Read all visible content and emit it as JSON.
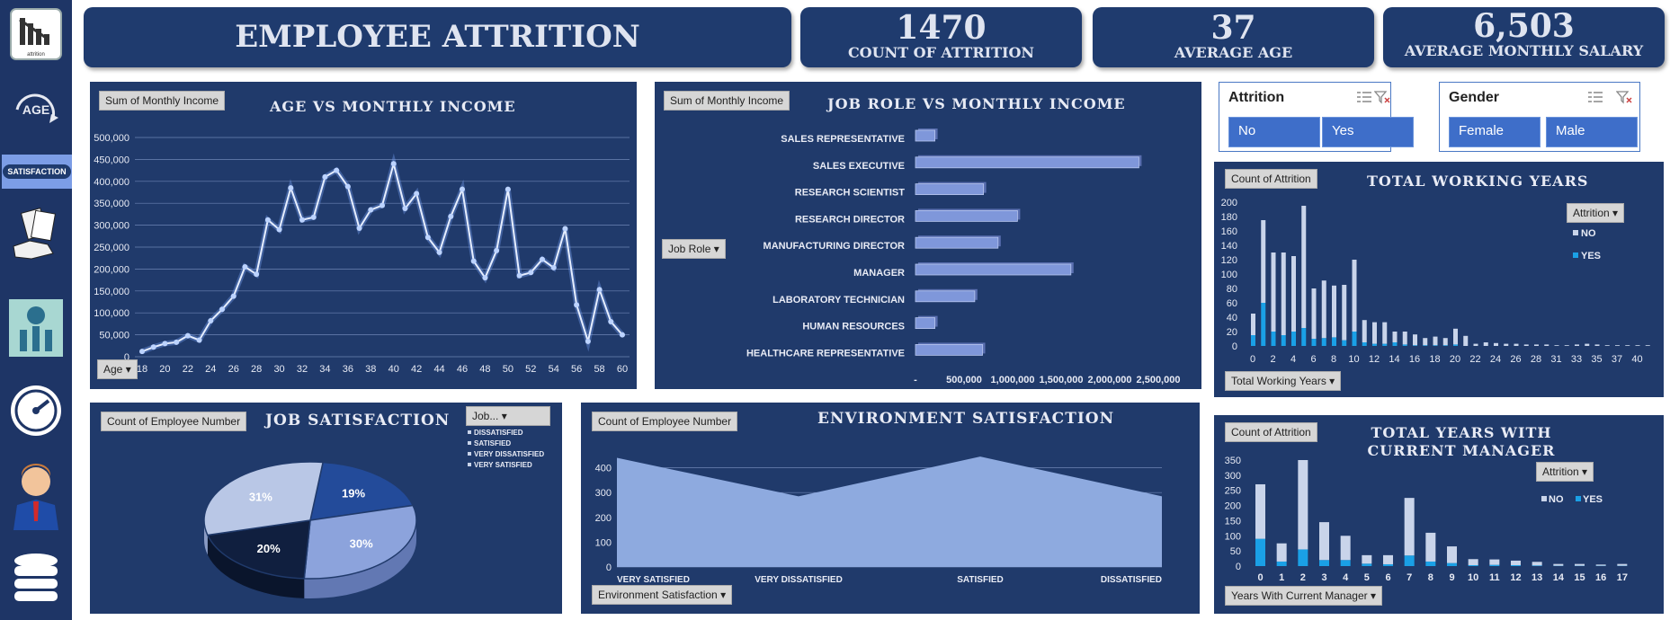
{
  "kpis": {
    "title": "EMPLOYEE ATTRITION",
    "attrition_value": "1470",
    "attrition_label": "COUNT OF ATTRITION",
    "age_value": "37",
    "age_label": "AVERAGE AGE",
    "salary_value": "6,503",
    "salary_label": "AVERAGE MONTHLY SALARY"
  },
  "sidebar": {
    "logo_caption": "attrition",
    "age_label": "AGE",
    "satisfaction_label": "SATISFACTION"
  },
  "slicers": {
    "attrition": {
      "title": "Attrition",
      "options": [
        "No",
        "Yes"
      ]
    },
    "gender": {
      "title": "Gender",
      "options": [
        "Female",
        "Male"
      ]
    }
  },
  "age_chart": {
    "title": "AGE VS MONTHLY INCOME",
    "field_chip": "Sum of Monthly  Income",
    "axis_chip": "Age"
  },
  "job_chart": {
    "title": "JOB ROLE VS MONTHLY INCOME",
    "field_chip": "Sum of Monthly  Income",
    "axis_chip": "Job Role"
  },
  "tw_chart": {
    "title": "TOTAL WORKING YEARS",
    "field_chip": "Count of Attrition",
    "legend_chip": "Attrition",
    "axis_chip": "Total Working Years"
  },
  "js_chart": {
    "title": "JOB SATISFACTION",
    "field_chip": "Count of Employee  Number",
    "legend_chip": "Job..."
  },
  "env_chart": {
    "title": "ENVIRONMENT SATISFACTION",
    "field_chip": "Count of Employee  Number",
    "axis_chip": "Environment  Satisfaction"
  },
  "mgr_chart": {
    "title": "TOTAL YEARS WITH CURRENT MANAGER",
    "field_chip": "Count of Attrition",
    "legend_chip": "Attrition",
    "axis_chip": "Years With Current Manager"
  },
  "colors": {
    "panel": "#203a6b",
    "line": "#7ea8ff",
    "bar": "#7f97da",
    "no_series": "#c9d4ea",
    "yes_series": "#1aa0e6",
    "area": "#8eaadf"
  },
  "chart_data": [
    {
      "id": "age",
      "type": "line",
      "xlabel": "",
      "ylabel": "",
      "x": [
        18,
        19,
        20,
        21,
        22,
        23,
        24,
        25,
        26,
        27,
        28,
        29,
        30,
        31,
        32,
        33,
        34,
        35,
        36,
        37,
        38,
        39,
        40,
        41,
        42,
        43,
        44,
        45,
        46,
        47,
        48,
        49,
        50,
        51,
        52,
        53,
        54,
        55,
        56,
        57,
        58,
        59,
        60
      ],
      "values": [
        12000,
        22000,
        30000,
        33000,
        48000,
        38000,
        82000,
        108000,
        138000,
        205000,
        188000,
        312000,
        290000,
        385000,
        312000,
        318000,
        410000,
        425000,
        388000,
        293000,
        335000,
        345000,
        440000,
        338000,
        372000,
        272000,
        238000,
        320000,
        382000,
        218000,
        180000,
        242000,
        382000,
        185000,
        192000,
        222000,
        203000,
        292000,
        118000,
        35000,
        153000,
        80000,
        50000
      ],
      "yticks": [
        0,
        50000,
        100000,
        150000,
        200000,
        250000,
        300000,
        350000,
        400000,
        450000,
        500000
      ],
      "ylim": [
        0,
        500000
      ],
      "xticks": [
        18,
        20,
        22,
        24,
        26,
        28,
        30,
        32,
        34,
        36,
        38,
        40,
        42,
        44,
        46,
        48,
        50,
        52,
        54,
        56,
        58,
        60
      ]
    },
    {
      "id": "jobrole",
      "type": "bar",
      "orientation": "horizontal",
      "categories": [
        "SALES REPRESENTATIVE",
        "SALES EXECUTIVE",
        "RESEARCH SCIENTIST",
        "RESEARCH DIRECTOR",
        "MANUFACTURING DIRECTOR",
        "MANAGER",
        "LABORATORY TECHNICIAN",
        "HUMAN RESOURCES",
        "HEALTHCARE REPRESENTATIVE"
      ],
      "values": [
        200000,
        2300000,
        700000,
        1050000,
        850000,
        1600000,
        610000,
        200000,
        690000
      ],
      "xticks": [
        "-",
        "500,000",
        "1,000,000",
        "1,500,000",
        "2,000,000",
        "2,500,000"
      ],
      "xlim": [
        0,
        2500000
      ]
    },
    {
      "id": "totalworking",
      "type": "bar",
      "stacked": true,
      "categories": [
        0,
        1,
        2,
        3,
        4,
        5,
        6,
        7,
        8,
        9,
        10,
        11,
        12,
        13,
        14,
        15,
        16,
        17,
        18,
        19,
        20,
        21,
        22,
        23,
        24,
        25,
        26,
        27,
        28,
        29,
        30,
        31,
        32,
        33,
        34,
        35,
        36,
        37,
        38,
        40
      ],
      "xticks": [
        "0",
        "2",
        "4",
        "6",
        "8",
        "10",
        "12",
        "14",
        "16",
        "18",
        "20",
        "22",
        "24",
        "26",
        "28",
        "31",
        "33",
        "35",
        "37",
        "40"
      ],
      "series": [
        {
          "name": "NO",
          "values": [
            30,
            115,
            110,
            115,
            105,
            170,
            70,
            80,
            72,
            77,
            100,
            31,
            30,
            30,
            15,
            18,
            15,
            10,
            12,
            10,
            22,
            14,
            3,
            5,
            4,
            3,
            3,
            2,
            2,
            2,
            1,
            1,
            2,
            3,
            2,
            1,
            1,
            1,
            1,
            1
          ]
        },
        {
          "name": "YES",
          "values": [
            15,
            60,
            20,
            15,
            20,
            25,
            10,
            11,
            12,
            8,
            20,
            5,
            3,
            3,
            5,
            2,
            1,
            1,
            1,
            1,
            2,
            0,
            0,
            0,
            0,
            0,
            0,
            0,
            0,
            0,
            0,
            0,
            0,
            0,
            0,
            0,
            0,
            0,
            0,
            0
          ]
        }
      ],
      "ylim": [
        0,
        200
      ],
      "yticks": [
        0,
        20,
        40,
        60,
        80,
        100,
        120,
        140,
        160,
        180,
        200
      ]
    },
    {
      "id": "jobsat",
      "type": "pie",
      "categories": [
        "DISSATISFIED",
        "SATISFIED",
        "VERY DISSATISFIED",
        "VERY SATISFIED"
      ],
      "values": [
        19,
        30,
        20,
        31
      ],
      "labels": [
        "19%",
        "30%",
        "20%",
        "31%"
      ]
    },
    {
      "id": "envsat",
      "type": "area",
      "categories": [
        "VERY SATISFIED",
        "VERY DISSATISFIED",
        "SATISFIED",
        "DISSATISFIED"
      ],
      "values": [
        440,
        285,
        445,
        285
      ],
      "ylim": [
        0,
        500
      ],
      "yticks": [
        0,
        100,
        200,
        300,
        400
      ]
    },
    {
      "id": "currentmanager",
      "type": "bar",
      "stacked": true,
      "categories": [
        0,
        1,
        2,
        3,
        4,
        5,
        6,
        7,
        8,
        9,
        10,
        11,
        12,
        13,
        14,
        15,
        16,
        17
      ],
      "series": [
        {
          "name": "NO",
          "values": [
            180,
            60,
            295,
            125,
            80,
            28,
            30,
            190,
            95,
            55,
            20,
            18,
            15,
            12,
            6,
            6,
            4,
            6
          ]
        },
        {
          "name": "YES",
          "values": [
            90,
            15,
            55,
            20,
            20,
            8,
            6,
            35,
            15,
            10,
            3,
            4,
            3,
            2,
            1,
            1,
            1,
            1
          ]
        }
      ],
      "ylim": [
        0,
        350
      ],
      "yticks": [
        0,
        50,
        100,
        150,
        200,
        250,
        300,
        350
      ]
    }
  ]
}
